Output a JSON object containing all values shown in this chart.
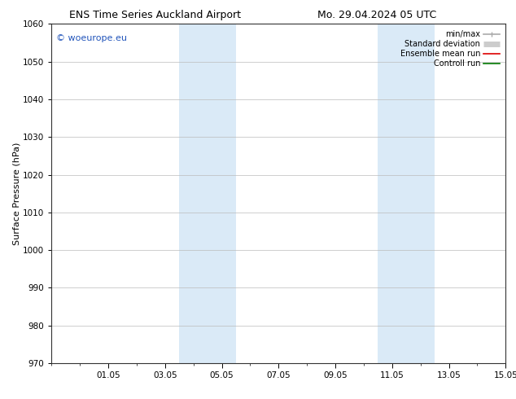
{
  "title_left": "ENS Time Series Auckland Airport",
  "title_right": "Mo. 29.04.2024 05 UTC",
  "ylabel": "Surface Pressure (hPa)",
  "ylim": [
    970,
    1060
  ],
  "yticks": [
    970,
    980,
    990,
    1000,
    1010,
    1020,
    1030,
    1040,
    1050,
    1060
  ],
  "xtick_labels": [
    "01.05",
    "03.05",
    "05.05",
    "07.05",
    "09.05",
    "11.05",
    "13.05",
    "15.05"
  ],
  "xtick_positions": [
    2,
    4,
    6,
    8,
    10,
    12,
    14,
    16
  ],
  "xlim": [
    0,
    16
  ],
  "shaded_bands": [
    {
      "x_start": 4.5,
      "x_end": 6.5
    },
    {
      "x_start": 11.5,
      "x_end": 13.5
    }
  ],
  "shaded_color": "#daeaf7",
  "watermark_text": "© woeurope.eu",
  "watermark_color": "#2255bb",
  "legend_entries": [
    {
      "label": "min/max",
      "color": "#aaaaaa",
      "lw": 1.2
    },
    {
      "label": "Standard deviation",
      "color": "#cccccc",
      "lw": 5
    },
    {
      "label": "Ensemble mean run",
      "color": "#dd0000",
      "lw": 1.2
    },
    {
      "label": "Controll run",
      "color": "#007700",
      "lw": 1.2
    }
  ],
  "bg_color": "#ffffff",
  "grid_color": "#bbbbbb",
  "tick_label_fontsize": 7.5,
  "title_fontsize": 9,
  "ylabel_fontsize": 8,
  "legend_fontsize": 7,
  "watermark_fontsize": 8
}
